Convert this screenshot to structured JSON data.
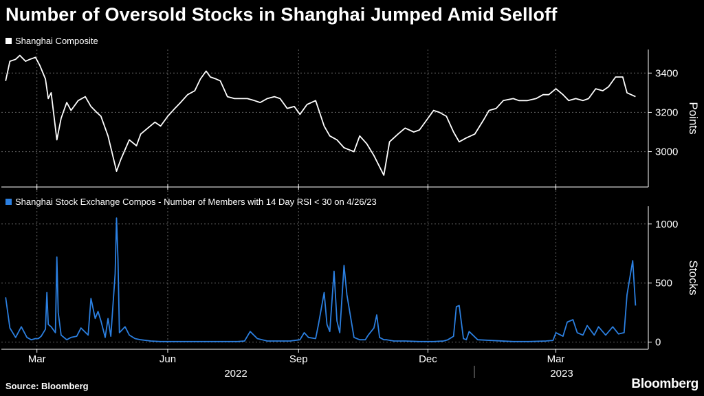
{
  "title": "Number of Oversold Stocks in Shanghai Jumped Amid Selloff",
  "source": "Source: Bloomberg",
  "brand": "Bloomberg",
  "colors": {
    "background": "#000000",
    "series1": "#ffffff",
    "series2": "#2b7fe0",
    "grid": "#666666"
  },
  "chart_data": [
    {
      "type": "line",
      "series": [
        {
          "name": "Shanghai Composite",
          "color": "#ffffff",
          "x": [
            "2022-02-07",
            "2022-02-10",
            "2022-02-14",
            "2022-02-17",
            "2022-02-21",
            "2022-02-24",
            "2022-02-28",
            "2022-03-03",
            "2022-03-07",
            "2022-03-09",
            "2022-03-11",
            "2022-03-15",
            "2022-03-18",
            "2022-03-22",
            "2022-03-25",
            "2022-03-30",
            "2022-04-04",
            "2022-04-08",
            "2022-04-12",
            "2022-04-15",
            "2022-04-20",
            "2022-04-26",
            "2022-04-29",
            "2022-05-05",
            "2022-05-10",
            "2022-05-13",
            "2022-05-18",
            "2022-05-23",
            "2022-05-27",
            "2022-06-01",
            "2022-06-06",
            "2022-06-10",
            "2022-06-15",
            "2022-06-20",
            "2022-06-24",
            "2022-06-28",
            "2022-07-01",
            "2022-07-05",
            "2022-07-08",
            "2022-07-13",
            "2022-07-18",
            "2022-07-22",
            "2022-07-27",
            "2022-08-01",
            "2022-08-05",
            "2022-08-10",
            "2022-08-15",
            "2022-08-19",
            "2022-08-24",
            "2022-08-29",
            "2022-09-02",
            "2022-09-07",
            "2022-09-13",
            "2022-09-19",
            "2022-09-23",
            "2022-09-28",
            "2022-10-03",
            "2022-10-10",
            "2022-10-14",
            "2022-10-19",
            "2022-10-24",
            "2022-10-31",
            "2022-11-04",
            "2022-11-10",
            "2022-11-15",
            "2022-11-21",
            "2022-11-25",
            "2022-11-30",
            "2022-12-05",
            "2022-12-09",
            "2022-12-14",
            "2022-12-19",
            "2022-12-23",
            "2022-12-28",
            "2023-01-03",
            "2023-01-09",
            "2023-01-13",
            "2023-01-18",
            "2023-01-23",
            "2023-01-30",
            "2023-02-03",
            "2023-02-09",
            "2023-02-15",
            "2023-02-20",
            "2023-02-24",
            "2023-03-01",
            "2023-03-06",
            "2023-03-10",
            "2023-03-15",
            "2023-03-20",
            "2023-03-24",
            "2023-03-29",
            "2023-04-03",
            "2023-04-07",
            "2023-04-12",
            "2023-04-17",
            "2023-04-20",
            "2023-04-26"
          ],
          "values": [
            3360,
            3460,
            3470,
            3490,
            3460,
            3470,
            3480,
            3440,
            3370,
            3270,
            3300,
            3060,
            3170,
            3250,
            3210,
            3260,
            3280,
            3230,
            3200,
            3180,
            3080,
            2900,
            2960,
            3060,
            3030,
            3090,
            3120,
            3150,
            3130,
            3180,
            3220,
            3250,
            3290,
            3310,
            3370,
            3410,
            3380,
            3370,
            3360,
            3280,
            3270,
            3270,
            3270,
            3260,
            3250,
            3270,
            3280,
            3270,
            3220,
            3230,
            3190,
            3240,
            3260,
            3130,
            3080,
            3060,
            3020,
            3000,
            3080,
            3040,
            2980,
            2880,
            3050,
            3090,
            3120,
            3100,
            3110,
            3160,
            3210,
            3200,
            3180,
            3100,
            3050,
            3070,
            3090,
            3160,
            3210,
            3220,
            3260,
            3270,
            3260,
            3260,
            3270,
            3290,
            3290,
            3320,
            3290,
            3260,
            3270,
            3260,
            3270,
            3320,
            3310,
            3330,
            3380,
            3380,
            3300,
            3280
          ]
        }
      ],
      "yticks": [
        3000,
        3200,
        3400
      ],
      "ylim": [
        2820,
        3520
      ],
      "ylabel": "Points"
    },
    {
      "type": "line",
      "series": [
        {
          "name": "Shanghai Stock Exchange Compos - Number of Members with 14 Day RSI < 30 on 4/26/23",
          "color": "#2b7fe0",
          "x": [
            "2022-02-07",
            "2022-02-10",
            "2022-02-14",
            "2022-02-18",
            "2022-02-22",
            "2022-02-25",
            "2022-02-28",
            "2022-03-02",
            "2022-03-04",
            "2022-03-07",
            "2022-03-08",
            "2022-03-09",
            "2022-03-11",
            "2022-03-14",
            "2022-03-15",
            "2022-03-16",
            "2022-03-18",
            "2022-03-22",
            "2022-03-25",
            "2022-03-29",
            "2022-04-01",
            "2022-04-06",
            "2022-04-08",
            "2022-04-11",
            "2022-04-13",
            "2022-04-15",
            "2022-04-18",
            "2022-04-20",
            "2022-04-22",
            "2022-04-25",
            "2022-04-26",
            "2022-04-27",
            "2022-04-28",
            "2022-05-02",
            "2022-05-05",
            "2022-05-09",
            "2022-05-13",
            "2022-05-20",
            "2022-05-27",
            "2022-06-10",
            "2022-06-30",
            "2022-07-15",
            "2022-07-20",
            "2022-07-25",
            "2022-07-29",
            "2022-08-03",
            "2022-08-10",
            "2022-08-26",
            "2022-09-02",
            "2022-09-05",
            "2022-09-08",
            "2022-09-13",
            "2022-09-15",
            "2022-09-19",
            "2022-09-21",
            "2022-09-23",
            "2022-09-26",
            "2022-09-28",
            "2022-09-30",
            "2022-10-03",
            "2022-10-05",
            "2022-10-10",
            "2022-10-14",
            "2022-10-18",
            "2022-10-20",
            "2022-10-24",
            "2022-10-26",
            "2022-10-28",
            "2022-10-31",
            "2022-11-02",
            "2022-11-07",
            "2022-11-15",
            "2022-11-25",
            "2022-12-05",
            "2022-12-12",
            "2022-12-15",
            "2022-12-19",
            "2022-12-21",
            "2022-12-23",
            "2022-12-26",
            "2022-12-28",
            "2022-12-30",
            "2023-01-05",
            "2023-01-30",
            "2023-02-10",
            "2023-02-22",
            "2023-02-27",
            "2023-03-01",
            "2023-03-06",
            "2023-03-09",
            "2023-03-13",
            "2023-03-16",
            "2023-03-20",
            "2023-03-23",
            "2023-03-28",
            "2023-03-31",
            "2023-04-05",
            "2023-04-10",
            "2023-04-14",
            "2023-04-18",
            "2023-04-20",
            "2023-04-24",
            "2023-04-26"
          ],
          "values": [
            380,
            120,
            40,
            130,
            40,
            20,
            30,
            30,
            50,
            110,
            420,
            150,
            130,
            80,
            720,
            250,
            60,
            20,
            40,
            50,
            120,
            60,
            370,
            200,
            260,
            180,
            40,
            200,
            50,
            580,
            1050,
            700,
            80,
            130,
            60,
            30,
            20,
            10,
            5,
            5,
            5,
            5,
            5,
            10,
            90,
            30,
            10,
            10,
            20,
            80,
            40,
            30,
            150,
            420,
            150,
            90,
            600,
            180,
            80,
            650,
            400,
            40,
            20,
            20,
            60,
            120,
            230,
            40,
            20,
            20,
            10,
            10,
            5,
            5,
            10,
            20,
            50,
            300,
            310,
            30,
            20,
            90,
            20,
            5,
            5,
            10,
            15,
            80,
            50,
            170,
            190,
            80,
            60,
            140,
            60,
            130,
            60,
            130,
            70,
            80,
            400,
            690,
            310
          ]
        }
      ],
      "yticks": [
        0,
        500,
        1000
      ],
      "ylim": [
        -60,
        1150
      ],
      "ylabel": "Stocks"
    }
  ],
  "xaxis": {
    "month_ticks": [
      {
        "label": "Mar",
        "date": "2022-03-01"
      },
      {
        "label": "Jun",
        "date": "2022-06-01"
      },
      {
        "label": "Sep",
        "date": "2022-09-01"
      },
      {
        "label": "Dec",
        "date": "2022-12-01"
      },
      {
        "label": "Mar",
        "date": "2023-03-01"
      }
    ],
    "year_labels": [
      "2022",
      "2023"
    ]
  }
}
